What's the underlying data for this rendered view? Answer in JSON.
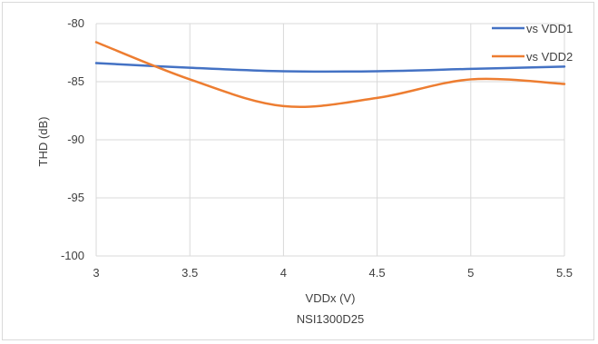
{
  "chart_data": {
    "type": "line",
    "xlabel": "VDDx (V)",
    "ylabel": "THD (dB)",
    "subtitle": "NSI1300D25",
    "xlim": [
      3,
      5.5
    ],
    "ylim": [
      -100,
      -80
    ],
    "x_ticks": [
      "3",
      "3.5",
      "4",
      "4.5",
      "5",
      "5.5"
    ],
    "y_ticks": [
      "-80",
      "-85",
      "-90",
      "-95",
      "-100"
    ],
    "grid": true,
    "legend_position": "top-right",
    "series": [
      {
        "name": "vs VDD1",
        "color": "#4472C4",
        "x": [
          3,
          3.5,
          4,
          4.5,
          5,
          5.5
        ],
        "values": [
          -83.4,
          -83.8,
          -84.1,
          -84.1,
          -83.9,
          -83.7
        ]
      },
      {
        "name": "vs VDD2",
        "color": "#ED7D31",
        "x": [
          3,
          3.5,
          4,
          4.5,
          5,
          5.5
        ],
        "values": [
          -81.6,
          -84.8,
          -87.1,
          -86.4,
          -84.8,
          -85.2
        ]
      }
    ]
  }
}
